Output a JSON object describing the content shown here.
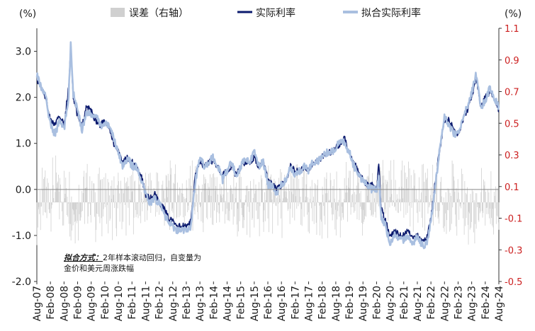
{
  "chart_data": {
    "type": "line",
    "left_unit": "(%)",
    "right_unit": "(%)",
    "y_left": {
      "min": -2.0,
      "max": 3.5,
      "ticks": [
        "3.0",
        "2.0",
        "1.0",
        "0.0",
        "-1.0",
        "-2.0"
      ],
      "tick_values": [
        3.0,
        2.0,
        1.0,
        0.0,
        -1.0,
        -2.0
      ]
    },
    "y_right": {
      "min": -0.5,
      "max": 1.1,
      "ticks": [
        "1.1",
        "0.9",
        "0.7",
        "0.5",
        "0.3",
        "0.1",
        "-0.1",
        "-0.3",
        "-0.5"
      ],
      "tick_values": [
        1.1,
        0.9,
        0.7,
        0.5,
        0.3,
        0.1,
        -0.1,
        -0.3,
        -0.5
      ]
    },
    "x_range": [
      "2007-08",
      "2024-08"
    ],
    "x_ticks": [
      "Aug-07",
      "Feb-08",
      "Aug-08",
      "Feb-09",
      "Aug-09",
      "Feb-10",
      "Aug-10",
      "Feb-11",
      "Aug-11",
      "Feb-12",
      "Aug-12",
      "Feb-13",
      "Aug-13",
      "Feb-14",
      "Aug-14",
      "Feb-15",
      "Aug-15",
      "Feb-16",
      "Aug-16",
      "Feb-17",
      "Aug-17",
      "Feb-18",
      "Aug-18",
      "Feb-19",
      "Aug-19",
      "Feb-20",
      "Aug-20",
      "Feb-21",
      "Aug-21",
      "Feb-22",
      "Aug-22",
      "Feb-23",
      "Aug-23",
      "Feb-24",
      "Aug-24"
    ],
    "legend": [
      "误差（右轴）",
      "实际利率",
      "拟合实际利率"
    ],
    "annotation": {
      "bold": "拟合方式：",
      "line1": "2年样本滚动回归，自变量为",
      "line2": "金价和美元周涨跌幅"
    },
    "colors": {
      "error": "#d0d0d0",
      "actual": "#0b1a6e",
      "fitted": "#a9bfe0",
      "right_axis": "#cc1f1f"
    },
    "series": [
      {
        "name": "实际利率",
        "x": [
          "2007-08",
          "2007-10",
          "2007-12",
          "2008-02",
          "2008-04",
          "2008-06",
          "2008-08",
          "2008-10",
          "2008-11",
          "2008-12",
          "2009-02",
          "2009-04",
          "2009-06",
          "2009-08",
          "2009-10",
          "2009-12",
          "2010-02",
          "2010-04",
          "2010-06",
          "2010-08",
          "2010-10",
          "2010-12",
          "2011-02",
          "2011-04",
          "2011-06",
          "2011-08",
          "2011-10",
          "2011-12",
          "2012-02",
          "2012-04",
          "2012-06",
          "2012-08",
          "2012-10",
          "2012-12",
          "2013-02",
          "2013-04",
          "2013-06",
          "2013-08",
          "2013-10",
          "2013-12",
          "2014-02",
          "2014-04",
          "2014-06",
          "2014-08",
          "2014-10",
          "2014-12",
          "2015-02",
          "2015-04",
          "2015-06",
          "2015-08",
          "2015-10",
          "2015-12",
          "2016-02",
          "2016-04",
          "2016-06",
          "2016-08",
          "2016-10",
          "2016-12",
          "2017-02",
          "2017-04",
          "2017-06",
          "2017-08",
          "2017-10",
          "2017-12",
          "2018-02",
          "2018-04",
          "2018-06",
          "2018-08",
          "2018-10",
          "2018-12",
          "2019-02",
          "2019-04",
          "2019-06",
          "2019-08",
          "2019-10",
          "2019-12",
          "2020-02",
          "2020-03",
          "2020-04",
          "2020-06",
          "2020-08",
          "2020-10",
          "2020-12",
          "2021-02",
          "2021-04",
          "2021-06",
          "2021-08",
          "2021-10",
          "2021-12",
          "2022-02",
          "2022-04",
          "2022-06",
          "2022-08",
          "2022-10",
          "2022-12",
          "2023-02",
          "2023-04",
          "2023-06",
          "2023-08",
          "2023-10",
          "2023-12",
          "2024-02",
          "2024-04",
          "2024-06",
          "2024-08"
        ],
        "values": [
          2.4,
          2.2,
          2.0,
          1.5,
          1.4,
          1.6,
          1.4,
          2.2,
          3.1,
          2.0,
          1.6,
          1.4,
          1.8,
          1.7,
          1.5,
          1.4,
          1.5,
          1.3,
          1.0,
          0.8,
          0.6,
          0.7,
          0.6,
          0.5,
          0.3,
          -0.1,
          -0.2,
          -0.1,
          -0.3,
          -0.4,
          -0.6,
          -0.7,
          -0.8,
          -0.8,
          -0.8,
          -0.7,
          0.3,
          0.6,
          0.5,
          0.6,
          0.6,
          0.5,
          0.3,
          0.4,
          0.5,
          0.3,
          0.5,
          0.6,
          0.6,
          0.7,
          0.5,
          0.6,
          0.2,
          0.1,
          0.0,
          0.1,
          0.2,
          0.5,
          0.4,
          0.4,
          0.5,
          0.4,
          0.6,
          0.6,
          0.7,
          0.8,
          0.8,
          0.9,
          1.0,
          1.1,
          0.8,
          0.6,
          0.4,
          0.2,
          0.1,
          0.1,
          0.0,
          0.6,
          -0.4,
          -0.7,
          -1.0,
          -0.9,
          -1.0,
          -1.0,
          -0.9,
          -1.1,
          -1.0,
          -1.1,
          -1.1,
          -0.6,
          0.2,
          0.9,
          1.5,
          1.5,
          1.3,
          1.2,
          1.5,
          1.7,
          2.0,
          2.4,
          1.8,
          2.0,
          2.1,
          2.0,
          1.7
        ]
      },
      {
        "name": "拟合实际利率",
        "x": [
          "2007-08",
          "2007-10",
          "2007-12",
          "2008-02",
          "2008-04",
          "2008-06",
          "2008-08",
          "2008-10",
          "2008-11",
          "2008-12",
          "2009-02",
          "2009-04",
          "2009-06",
          "2009-08",
          "2009-10",
          "2009-12",
          "2010-02",
          "2010-04",
          "2010-06",
          "2010-08",
          "2010-10",
          "2010-12",
          "2011-02",
          "2011-04",
          "2011-06",
          "2011-08",
          "2011-10",
          "2011-12",
          "2012-02",
          "2012-04",
          "2012-06",
          "2012-08",
          "2012-10",
          "2012-12",
          "2013-02",
          "2013-04",
          "2013-06",
          "2013-08",
          "2013-10",
          "2013-12",
          "2014-02",
          "2014-04",
          "2014-06",
          "2014-08",
          "2014-10",
          "2014-12",
          "2015-02",
          "2015-04",
          "2015-06",
          "2015-08",
          "2015-10",
          "2015-12",
          "2016-02",
          "2016-04",
          "2016-06",
          "2016-08",
          "2016-10",
          "2016-12",
          "2017-02",
          "2017-04",
          "2017-06",
          "2017-08",
          "2017-10",
          "2017-12",
          "2018-02",
          "2018-04",
          "2018-06",
          "2018-08",
          "2018-10",
          "2018-12",
          "2019-02",
          "2019-04",
          "2019-06",
          "2019-08",
          "2019-10",
          "2019-12",
          "2020-02",
          "2020-03",
          "2020-04",
          "2020-06",
          "2020-08",
          "2020-10",
          "2020-12",
          "2021-02",
          "2021-04",
          "2021-06",
          "2021-08",
          "2021-10",
          "2021-12",
          "2022-02",
          "2022-04",
          "2022-06",
          "2022-08",
          "2022-10",
          "2022-12",
          "2023-02",
          "2023-04",
          "2023-06",
          "2023-08",
          "2023-10",
          "2023-12",
          "2024-02",
          "2024-04",
          "2024-06",
          "2024-08"
        ],
        "values": [
          2.5,
          2.2,
          2.0,
          1.4,
          1.2,
          1.5,
          1.3,
          2.0,
          3.2,
          2.1,
          1.7,
          1.3,
          1.7,
          1.6,
          1.6,
          1.4,
          1.4,
          1.4,
          1.1,
          0.8,
          0.5,
          0.7,
          0.5,
          0.5,
          0.2,
          -0.1,
          -0.3,
          -0.2,
          -0.3,
          -0.5,
          -0.7,
          -0.8,
          -0.9,
          -0.9,
          -0.9,
          -0.8,
          0.2,
          0.7,
          0.5,
          0.6,
          0.7,
          0.5,
          0.2,
          0.4,
          0.6,
          0.3,
          0.5,
          0.7,
          0.6,
          0.8,
          0.5,
          0.6,
          0.1,
          0.1,
          -0.1,
          0.1,
          0.2,
          0.5,
          0.3,
          0.4,
          0.5,
          0.4,
          0.6,
          0.6,
          0.7,
          0.8,
          0.8,
          0.9,
          1.1,
          1.0,
          0.8,
          0.5,
          0.3,
          0.2,
          0.1,
          0.0,
          0.0,
          0.3,
          -0.6,
          -0.8,
          -1.2,
          -1.0,
          -1.1,
          -1.1,
          -1.0,
          -1.2,
          -1.0,
          -1.2,
          -1.2,
          -0.7,
          0.1,
          0.9,
          1.6,
          1.4,
          1.2,
          1.2,
          1.5,
          1.8,
          2.1,
          2.5,
          1.8,
          1.9,
          2.2,
          2.0,
          1.8
        ]
      }
    ]
  }
}
